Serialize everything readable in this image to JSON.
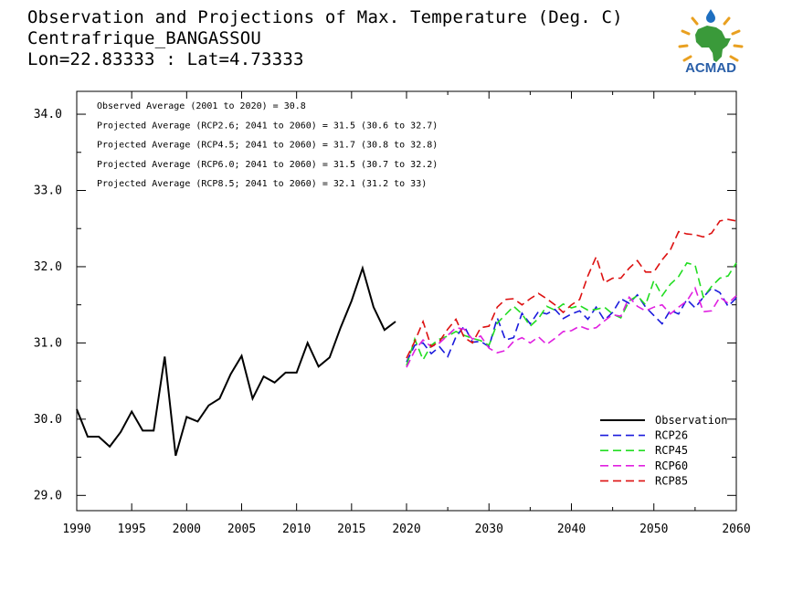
{
  "header": {
    "line1": "Observation and Projections of Max. Temperature (Deg. C)",
    "line2": "Centrafrique_BANGASSOU",
    "line3": "Lon=22.83333 : Lat=4.73333"
  },
  "logo": {
    "text": "ACMAD",
    "icon": "acmad-africa-logo"
  },
  "annotations": [
    "Observed Average (2001 to 2020) = 30.8",
    "Projected Average (RCP2.6; 2041 to 2060) = 31.5 (30.6 to 32.7)",
    "Projected Average (RCP4.5; 2041 to 2060) = 31.7 (30.8 to 32.8)",
    "Projected Average (RCP6.0; 2041 to 2060) = 31.5 (30.7 to 32.2)",
    "Projected Average (RCP8.5; 2041 to 2060) = 32.1 (31.2 to 33)"
  ],
  "colors": {
    "Observation": "#000000",
    "RCP26": "#1a1adc",
    "RCP45": "#22dd22",
    "RCP60": "#e020e0",
    "RCP85": "#dd1111"
  },
  "chart_data": {
    "type": "line",
    "title": "Observation and Projections of Max. Temperature (Deg. C)",
    "xlabel": "",
    "ylabel": "",
    "ylim": [
      28.8,
      34.3
    ],
    "yticks": [
      29.0,
      30.0,
      31.0,
      32.0,
      33.0,
      34.0
    ],
    "ytick_labels": [
      "29.0",
      "30.0",
      "31.0",
      "32.0",
      "33.0",
      "34.0"
    ],
    "xticks": [
      1990,
      1995,
      2000,
      2005,
      2010,
      2015,
      2020,
      2030,
      2040,
      2050,
      2060
    ],
    "xtick_labels": [
      "1990",
      "1995",
      "2000",
      "2005",
      "2010",
      "2015",
      "2020",
      "2030",
      "2040",
      "2050",
      "2060"
    ],
    "x_scale_note": "broken axis: 1990-2020 then 2020-2060 compressed",
    "legend_position": "bottom-right",
    "grid": false,
    "series": [
      {
        "name": "Observation",
        "style": "solid",
        "x": [
          1990,
          1991,
          1992,
          1993,
          1994,
          1995,
          1996,
          1997,
          1998,
          1999,
          2000,
          2001,
          2002,
          2003,
          2004,
          2005,
          2006,
          2007,
          2008,
          2009,
          2010,
          2011,
          2012,
          2013,
          2014,
          2015,
          2016,
          2017,
          2018,
          2019
        ],
        "values": [
          30.13,
          29.77,
          29.77,
          29.64,
          29.83,
          30.1,
          29.85,
          29.85,
          30.82,
          29.52,
          30.03,
          29.97,
          30.18,
          30.27,
          30.59,
          30.83,
          30.27,
          30.56,
          30.48,
          30.61,
          30.61,
          31.0,
          30.69,
          30.81,
          31.2,
          31.55,
          31.98,
          31.47,
          31.17,
          31.28
        ]
      },
      {
        "name": "RCP26",
        "style": "dashed",
        "x": [
          2020,
          2021,
          2022,
          2023,
          2024,
          2025,
          2026,
          2027,
          2028,
          2029,
          2030,
          2031,
          2032,
          2033,
          2034,
          2035,
          2036,
          2037,
          2038,
          2039,
          2040,
          2041,
          2042,
          2043,
          2044,
          2045,
          2046,
          2047,
          2048,
          2049,
          2050,
          2051,
          2052,
          2053,
          2054,
          2055,
          2056,
          2057,
          2058,
          2059,
          2060
        ],
        "values": [
          30.75,
          30.97,
          31.0,
          30.86,
          30.95,
          30.82,
          31.08,
          31.22,
          31.01,
          31.02,
          30.95,
          31.33,
          31.04,
          31.07,
          31.39,
          31.25,
          31.41,
          31.38,
          31.44,
          31.32,
          31.38,
          31.42,
          31.31,
          31.47,
          31.3,
          31.4,
          31.58,
          31.52,
          31.63,
          31.47,
          31.36,
          31.25,
          31.43,
          31.38,
          31.57,
          31.46,
          31.6,
          31.72,
          31.66,
          31.48,
          31.59
        ]
      },
      {
        "name": "RCP45",
        "style": "dashed",
        "x": [
          2020,
          2021,
          2022,
          2023,
          2024,
          2025,
          2026,
          2027,
          2028,
          2029,
          2030,
          2031,
          2032,
          2033,
          2034,
          2035,
          2036,
          2037,
          2038,
          2039,
          2040,
          2041,
          2042,
          2043,
          2044,
          2045,
          2046,
          2047,
          2048,
          2049,
          2050,
          2051,
          2052,
          2053,
          2054,
          2055,
          2056,
          2057,
          2058,
          2059,
          2060
        ],
        "values": [
          30.7,
          31.05,
          30.78,
          30.97,
          31.05,
          31.09,
          31.15,
          31.1,
          31.06,
          31.03,
          30.97,
          31.26,
          31.37,
          31.48,
          31.38,
          31.22,
          31.32,
          31.48,
          31.43,
          31.51,
          31.46,
          31.49,
          31.43,
          31.44,
          31.47,
          31.38,
          31.33,
          31.55,
          31.62,
          31.5,
          31.82,
          31.62,
          31.77,
          31.87,
          32.05,
          32.02,
          31.6,
          31.74,
          31.85,
          31.88,
          32.05
        ]
      },
      {
        "name": "RCP60",
        "style": "dashed",
        "x": [
          2020,
          2021,
          2022,
          2023,
          2024,
          2025,
          2026,
          2027,
          2028,
          2029,
          2030,
          2031,
          2032,
          2033,
          2034,
          2035,
          2036,
          2037,
          2038,
          2039,
          2040,
          2041,
          2042,
          2043,
          2044,
          2045,
          2046,
          2047,
          2048,
          2049,
          2050,
          2051,
          2052,
          2053,
          2054,
          2055,
          2056,
          2057,
          2058,
          2059,
          2060
        ],
        "values": [
          30.68,
          30.9,
          31.04,
          30.95,
          31.0,
          31.1,
          31.2,
          31.18,
          31.05,
          31.09,
          30.93,
          30.87,
          30.9,
          31.02,
          31.07,
          31.0,
          31.08,
          30.98,
          31.06,
          31.15,
          31.16,
          31.22,
          31.18,
          31.2,
          31.29,
          31.37,
          31.35,
          31.6,
          31.48,
          31.42,
          31.47,
          31.5,
          31.38,
          31.47,
          31.55,
          31.72,
          31.41,
          31.42,
          31.6,
          31.52,
          31.62
        ]
      },
      {
        "name": "RCP85",
        "style": "dashed",
        "x": [
          2020,
          2021,
          2022,
          2023,
          2024,
          2025,
          2026,
          2027,
          2028,
          2029,
          2030,
          2031,
          2032,
          2033,
          2034,
          2035,
          2036,
          2037,
          2038,
          2039,
          2040,
          2041,
          2042,
          2043,
          2044,
          2045,
          2046,
          2047,
          2048,
          2049,
          2050,
          2051,
          2052,
          2053,
          2054,
          2055,
          2056,
          2057,
          2058,
          2059,
          2060
        ],
        "values": [
          30.8,
          31.02,
          31.28,
          30.95,
          31.02,
          31.18,
          31.31,
          31.07,
          31.0,
          31.2,
          31.22,
          31.47,
          31.57,
          31.58,
          31.5,
          31.58,
          31.65,
          31.58,
          31.5,
          31.4,
          31.5,
          31.57,
          31.88,
          32.13,
          31.79,
          31.85,
          31.85,
          31.98,
          32.08,
          31.93,
          31.93,
          32.09,
          32.22,
          32.46,
          32.43,
          32.42,
          32.39,
          32.44,
          32.6,
          32.62,
          32.6
        ]
      }
    ]
  }
}
